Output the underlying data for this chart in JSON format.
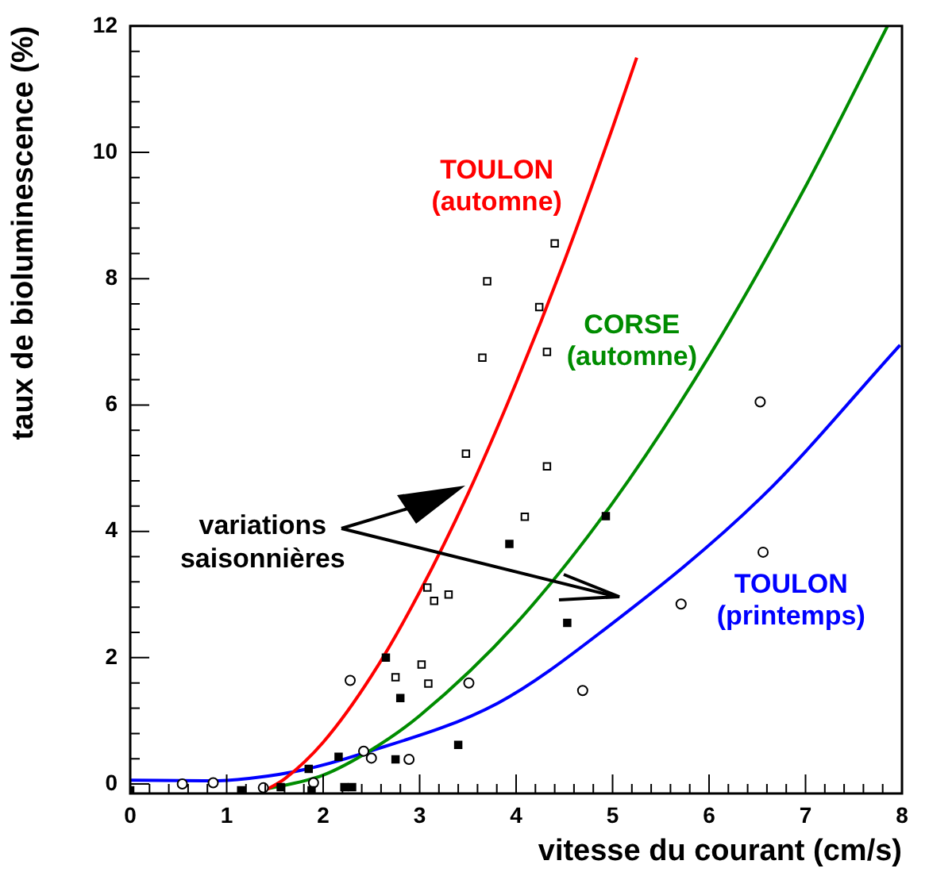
{
  "chart_data": {
    "type": "scatter",
    "xlabel": "vitesse du courant (cm/s)",
    "ylabel": "taux de bioluminescence (%)",
    "xlim": [
      0,
      8
    ],
    "ylim": [
      -0.15,
      12
    ],
    "xticks": [
      0,
      1,
      2,
      3,
      4,
      5,
      6,
      7,
      8
    ],
    "yticks": [
      0,
      2,
      4,
      6,
      8,
      10,
      12
    ],
    "grid": false,
    "legend": false,
    "annotations": [
      "variations saisonnières"
    ],
    "series": [
      {
        "marker": "square",
        "color": "#000000",
        "x": [
          4.4,
          3.7,
          4.24,
          3.65,
          4.32,
          3.48,
          4.32,
          4.09,
          3.08,
          3.15,
          3.3,
          3.02,
          2.75,
          3.09
        ],
        "values": [
          8.56,
          7.96,
          7.55,
          6.75,
          6.84,
          5.23,
          5.03,
          4.23,
          3.11,
          2.9,
          3.0,
          1.89,
          1.69,
          1.59
        ]
      },
      {
        "marker": "square",
        "color": "#000000",
        "x": [
          3.93,
          4.93,
          4.53,
          2.65,
          2.8,
          3.4,
          2.16,
          2.75,
          1.85,
          1.15,
          1.56,
          1.88,
          2.22,
          2.3,
          0
        ],
        "values": [
          3.8,
          4.24,
          2.55,
          2.0,
          1.36,
          0.62,
          0.43,
          0.39,
          0.24,
          -0.1,
          -0.05,
          -0.1,
          -0.05,
          -0.05,
          -0.1
        ]
      },
      {
        "marker": "circle",
        "color": "#000000",
        "x": [
          2.28,
          3.51,
          6.53,
          6.56,
          5.71,
          4.69,
          2.5,
          2.89,
          1.9,
          1.38,
          0.54,
          0.86,
          2.42
        ],
        "values": [
          1.64,
          1.6,
          6.05,
          3.67,
          2.85,
          1.48,
          0.41,
          0.39,
          0.02,
          -0.06,
          0.0,
          0.02,
          0.52
        ]
      },
      {
        "type": "line",
        "name": "TOULON (automne)",
        "marker": "none",
        "color": "#ff0000",
        "x": [
          1.4,
          1.6,
          2.0,
          2.5,
          3.0,
          3.5,
          4.0,
          4.5,
          5.0,
          5.25
        ],
        "values": [
          -0.1,
          0.08,
          0.66,
          1.71,
          3.04,
          4.59,
          6.35,
          8.28,
          10.39,
          11.5
        ]
      },
      {
        "type": "line",
        "name": "CORSE (automne)",
        "marker": "none",
        "color": "#008c00",
        "x": [
          1.35,
          2.0,
          2.5,
          3.0,
          4.0,
          5.0,
          6.0,
          7.0,
          7.85
        ],
        "values": [
          -0.1,
          0.14,
          0.54,
          1.08,
          2.54,
          4.45,
          6.77,
          9.46,
          12.0
        ]
      },
      {
        "type": "line",
        "name": "TOULON (printemps)",
        "marker": "none",
        "color": "#0000ff",
        "x": [
          0,
          0.87,
          1.3,
          1.78,
          2.38,
          3.81,
          4.91,
          6.55,
          7.98
        ],
        "values": [
          0.06,
          0.05,
          0.1,
          0.22,
          0.47,
          1.28,
          2.44,
          4.55,
          6.95
        ]
      }
    ]
  }
}
